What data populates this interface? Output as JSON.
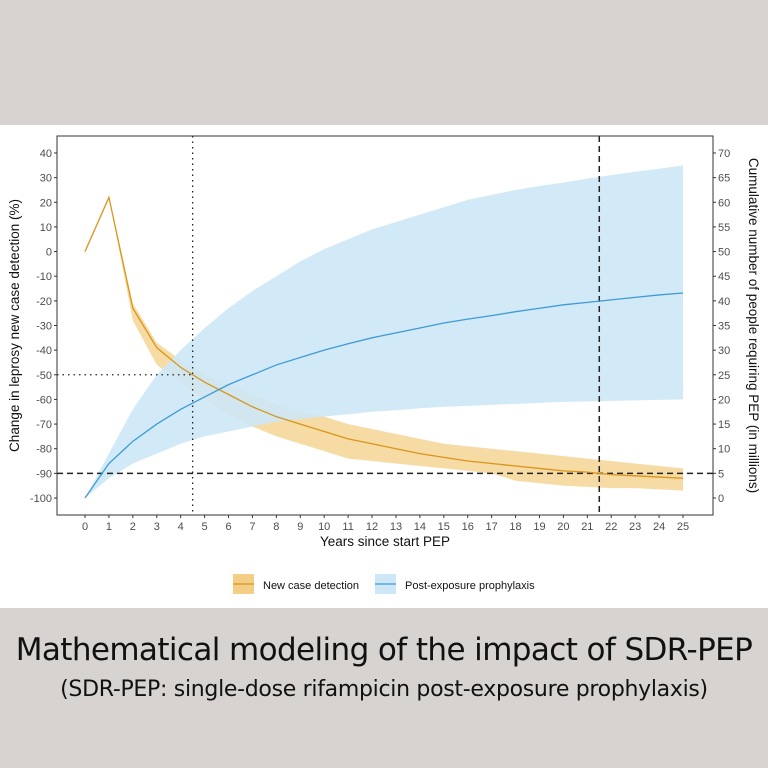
{
  "chart_data": {
    "type": "line",
    "xlabel": "Years since start PEP",
    "ylabel_left": "Change in leprosy new case detection (%)",
    "ylabel_right": "Cumulative number of people requiring PEP (in millions)",
    "xlim": [
      0,
      25
    ],
    "ylim_left": [
      -100,
      40
    ],
    "ylim_right": [
      0,
      70
    ],
    "x_ticks": [
      0,
      1,
      2,
      3,
      4,
      5,
      6,
      7,
      8,
      9,
      10,
      11,
      12,
      13,
      14,
      15,
      16,
      17,
      18,
      19,
      20,
      21,
      22,
      23,
      24,
      25
    ],
    "y_left_ticks": [
      40,
      30,
      20,
      10,
      0,
      -10,
      -20,
      -30,
      -40,
      -50,
      -60,
      -70,
      -80,
      -90,
      -100
    ],
    "y_right_ticks": [
      70,
      65,
      60,
      55,
      50,
      45,
      40,
      35,
      30,
      25,
      20,
      15,
      10,
      5,
      0
    ],
    "legend_position": "bottom",
    "series": [
      {
        "name": "New case detection",
        "axis": "left",
        "color": "#d9961a",
        "band_color": "#f3cf85",
        "x": [
          0,
          1,
          2,
          3,
          4,
          5,
          6,
          7,
          8,
          9,
          10,
          11,
          12,
          13,
          14,
          15,
          16,
          17,
          18,
          19,
          20,
          21,
          22,
          23,
          24,
          25
        ],
        "y": [
          0,
          22,
          -23,
          -39,
          -47,
          -53,
          -58,
          -63,
          -67,
          -70,
          -73,
          -76,
          -78,
          -80,
          -82,
          -83.5,
          -85,
          -86,
          -87,
          -88,
          -89,
          -89.5,
          -90.5,
          -91,
          -91.5,
          -92
        ],
        "upper": [
          0,
          22,
          -21,
          -37,
          -44,
          -50,
          -54,
          -58,
          -62,
          -65,
          -67,
          -70,
          -72,
          -74,
          -76,
          -78,
          -79,
          -80,
          -81,
          -82,
          -83,
          -84,
          -85,
          -86,
          -87,
          -88
        ],
        "lower": [
          0,
          22,
          -28,
          -46,
          -53,
          -60,
          -66,
          -71,
          -75,
          -78,
          -81,
          -84,
          -85,
          -86,
          -87,
          -88,
          -89,
          -90,
          -93,
          -94,
          -95,
          -95.5,
          -96,
          -96,
          -96.5,
          -97
        ]
      },
      {
        "name": "Post-exposure prophylaxis",
        "axis": "right",
        "color": "#3e9bd6",
        "band_color": "#cde7f6",
        "x": [
          0,
          1,
          2,
          3,
          4,
          5,
          6,
          7,
          8,
          9,
          10,
          11,
          12,
          13,
          14,
          15,
          16,
          17,
          18,
          19,
          20,
          21,
          22,
          23,
          24,
          25
        ],
        "y": [
          0,
          7,
          11.5,
          15,
          18,
          20.5,
          23,
          25,
          27,
          28.5,
          30,
          31.3,
          32.5,
          33.5,
          34.5,
          35.5,
          36.3,
          37,
          37.8,
          38.5,
          39.2,
          39.7,
          40.2,
          40.7,
          41.2,
          41.6
        ],
        "upper": [
          0,
          9,
          18,
          25,
          30,
          34.5,
          38.5,
          42,
          45,
          48,
          50.5,
          52.5,
          54.5,
          56,
          57.5,
          59,
          60.5,
          61.5,
          62.5,
          63.3,
          64,
          64.8,
          65.5,
          66.2,
          66.8,
          67.5
        ],
        "lower": [
          0,
          4,
          7,
          9,
          11,
          12.5,
          13.5,
          14.5,
          15.5,
          16,
          16.5,
          17,
          17.5,
          17.8,
          18.2,
          18.5,
          18.7,
          18.9,
          19.1,
          19.3,
          19.5,
          19.6,
          19.7,
          19.8,
          19.9,
          20
        ]
      }
    ],
    "reference_lines": [
      {
        "type": "horizontal",
        "y": -50,
        "style": "dotted",
        "x_to": 4.5
      },
      {
        "type": "vertical",
        "x": 4.5,
        "style": "dotted"
      },
      {
        "type": "horizontal",
        "y": -90,
        "style": "dashed"
      },
      {
        "type": "vertical",
        "x": 21.5,
        "style": "dashed"
      }
    ]
  },
  "caption": {
    "title": "Mathematical modeling of the impact of SDR-PEP",
    "subtitle": "(SDR-PEP: single-dose rifampicin post-exposure prophylaxis)"
  }
}
